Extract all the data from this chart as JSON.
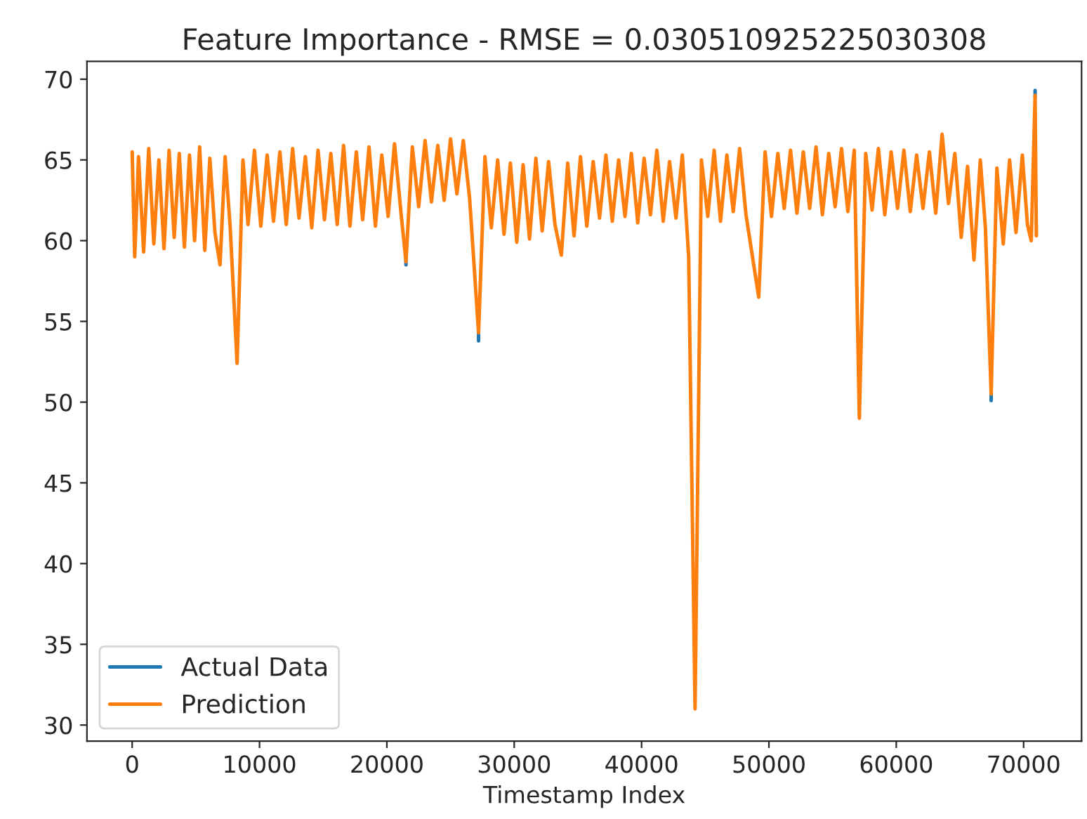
{
  "chart_data": {
    "type": "line",
    "title": "Feature Importance - RMSE = 0.030510925225030308",
    "xlabel": "Timestamp Index",
    "xlim": [
      -3550,
      74550
    ],
    "ylim": [
      29.0,
      71.1
    ],
    "xticks": [
      0,
      10000,
      20000,
      30000,
      40000,
      50000,
      60000,
      70000
    ],
    "yticks": [
      30,
      35,
      40,
      45,
      50,
      55,
      60,
      65,
      70
    ],
    "legend": "bottom left",
    "grid": false,
    "x": [
      0,
      200,
      500,
      900,
      1300,
      1700,
      2100,
      2500,
      2900,
      3300,
      3700,
      4100,
      4500,
      4900,
      5300,
      5700,
      6100,
      6500,
      6900,
      7300,
      7700,
      8240,
      8700,
      9100,
      9600,
      10100,
      10600,
      11100,
      11600,
      12100,
      12600,
      13100,
      13600,
      14100,
      14600,
      15100,
      15600,
      16100,
      16600,
      17100,
      17600,
      18100,
      18600,
      19100,
      19600,
      20100,
      20600,
      21100,
      21500,
      22000,
      22500,
      23000,
      23500,
      24000,
      24500,
      25000,
      25500,
      26000,
      26500,
      27200,
      27700,
      28200,
      28700,
      29200,
      29700,
      30200,
      30700,
      31200,
      31700,
      32200,
      32700,
      33200,
      33700,
      34200,
      34700,
      35200,
      35700,
      36200,
      36700,
      37200,
      37700,
      38200,
      38700,
      39200,
      39700,
      40200,
      40700,
      41200,
      41700,
      42200,
      42700,
      43200,
      43700,
      44200,
      44700,
      45200,
      45700,
      46200,
      46700,
      47200,
      47700,
      48200,
      49200,
      49700,
      50200,
      50700,
      51200,
      51700,
      52200,
      52700,
      53200,
      53700,
      54200,
      54700,
      55200,
      55700,
      56200,
      56700,
      57100,
      57600,
      58100,
      58600,
      59100,
      59600,
      60100,
      60600,
      61100,
      61600,
      62100,
      62600,
      63100,
      63600,
      64100,
      64600,
      65100,
      65600,
      66100,
      66600,
      67000,
      67450,
      67900,
      68400,
      68900,
      69400,
      69900,
      70300,
      70600,
      70900,
      71000
    ],
    "series": [
      {
        "name": "Actual Data",
        "color": "#1f77b4",
        "x": [
          21500,
          21500,
          21700,
          27200,
          27200,
          27400,
          67450,
          67450,
          67600,
          70900,
          70900
        ],
        "values": [
          58.9,
          58.5,
          null,
          54.5,
          53.8,
          null,
          50.6,
          50.1,
          null,
          68.9,
          69.3
        ]
      },
      {
        "name": "Prediction",
        "color": "#ff7f0e",
        "values": [
          65.5,
          59.0,
          65.2,
          59.3,
          65.7,
          59.8,
          65.0,
          59.5,
          65.6,
          60.2,
          65.4,
          59.6,
          65.3,
          60.0,
          65.8,
          59.4,
          65.1,
          60.5,
          58.5,
          65.2,
          60.8,
          52.4,
          65.0,
          61.0,
          65.6,
          60.9,
          65.3,
          61.2,
          65.5,
          61.0,
          65.7,
          61.4,
          65.2,
          60.8,
          65.6,
          61.3,
          65.4,
          61.0,
          65.9,
          60.9,
          65.5,
          61.3,
          65.8,
          60.9,
          65.3,
          61.5,
          66.0,
          61.8,
          58.7,
          65.8,
          62.1,
          66.2,
          62.4,
          65.9,
          62.5,
          66.3,
          62.9,
          66.2,
          62.6,
          54.3,
          65.2,
          60.8,
          65.0,
          60.4,
          64.8,
          59.9,
          64.7,
          60.1,
          65.1,
          60.6,
          64.9,
          61.0,
          59.1,
          64.8,
          60.3,
          65.2,
          60.9,
          64.9,
          61.4,
          65.3,
          61.2,
          65.0,
          61.5,
          65.4,
          61.1,
          65.1,
          61.6,
          65.6,
          61.2,
          64.9,
          61.4,
          65.3,
          59.0,
          31.0,
          65.0,
          61.5,
          65.6,
          61.2,
          65.3,
          61.8,
          65.7,
          61.6,
          56.5,
          65.5,
          61.5,
          65.4,
          62.0,
          65.6,
          61.7,
          65.5,
          62.0,
          65.8,
          61.6,
          65.4,
          62.1,
          65.7,
          61.8,
          65.6,
          49.0,
          65.4,
          61.9,
          65.7,
          61.6,
          65.5,
          62.0,
          65.6,
          61.8,
          65.3,
          62.0,
          65.5,
          61.7,
          66.6,
          62.3,
          65.4,
          60.2,
          64.6,
          58.8,
          65.0,
          60.8,
          50.5,
          64.5,
          59.8,
          65.0,
          60.5,
          65.3,
          61.0,
          60.0,
          69.0,
          60.3
        ]
      }
    ]
  }
}
